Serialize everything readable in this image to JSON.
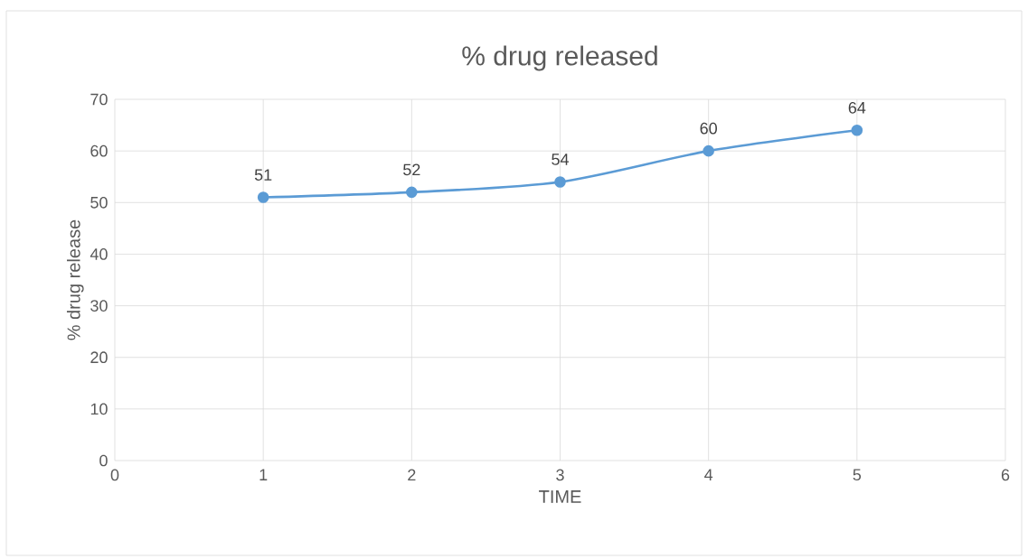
{
  "chart_data": {
    "type": "line",
    "title": "% drug released",
    "xlabel": "TIME",
    "ylabel": "% drug release",
    "x": [
      1,
      2,
      3,
      4,
      5
    ],
    "series": [
      {
        "color": "#5b9bd5",
        "values": [
          51,
          52,
          54,
          60,
          64
        ]
      }
    ],
    "xlim": [
      0,
      6
    ],
    "ylim": [
      0,
      70
    ],
    "xticks": [
      0,
      1,
      2,
      3,
      4,
      5,
      6
    ],
    "yticks": [
      0,
      10,
      20,
      30,
      40,
      50,
      60,
      70
    ],
    "grid": true,
    "marker": "circle",
    "data_labels": true
  }
}
